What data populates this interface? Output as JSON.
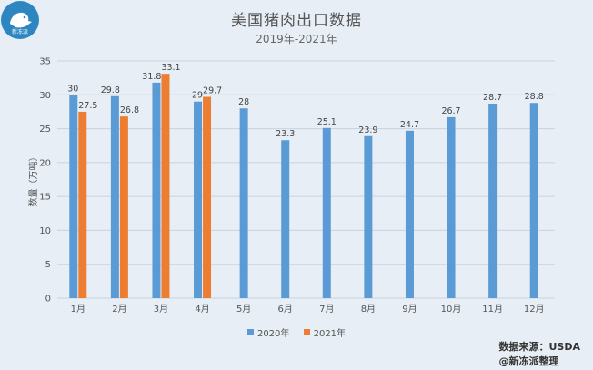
{
  "header": {
    "title": "美国猪肉出口数据",
    "subtitle": "2019年-2021年",
    "logo_text": "新冻派"
  },
  "footer": {
    "source": "数据来源：USDA",
    "credit": "@新冻派整理"
  },
  "colors": {
    "series_2020": "#5b9bd5",
    "series_2021": "#ed7d31",
    "grid": "#c9d3dd",
    "background": "#e7eef5",
    "logo_bg": "#2e86c1"
  },
  "chart_data": {
    "type": "bar",
    "title": "美国猪肉出口数据",
    "subtitle": "2019年-2021年",
    "xlabel": "",
    "ylabel": "数量（万吨）",
    "ylim": [
      0,
      35
    ],
    "yticks": [
      0,
      5,
      10,
      15,
      20,
      25,
      30,
      35
    ],
    "grid": true,
    "legend_position": "bottom",
    "categories": [
      "1月",
      "2月",
      "3月",
      "4月",
      "5月",
      "6月",
      "7月",
      "8月",
      "9月",
      "10月",
      "11月",
      "12月"
    ],
    "series": [
      {
        "name": "2020年",
        "values": [
          30,
          29.8,
          31.8,
          29,
          28,
          23.3,
          25.1,
          23.9,
          24.7,
          26.7,
          28.7,
          28.8
        ],
        "labels": [
          "30",
          "29.8",
          "31.8",
          "29",
          "28",
          "23.3",
          "25.1",
          "23.9",
          "24.7",
          "26.7",
          "28.7",
          "28.8"
        ]
      },
      {
        "name": "2021年",
        "values": [
          27.5,
          26.8,
          33.1,
          29.7,
          null,
          null,
          null,
          null,
          null,
          null,
          null,
          null
        ],
        "labels": [
          "27.5",
          "26.8",
          "33.1",
          "29.7",
          null,
          null,
          null,
          null,
          null,
          null,
          null,
          null
        ]
      }
    ]
  }
}
